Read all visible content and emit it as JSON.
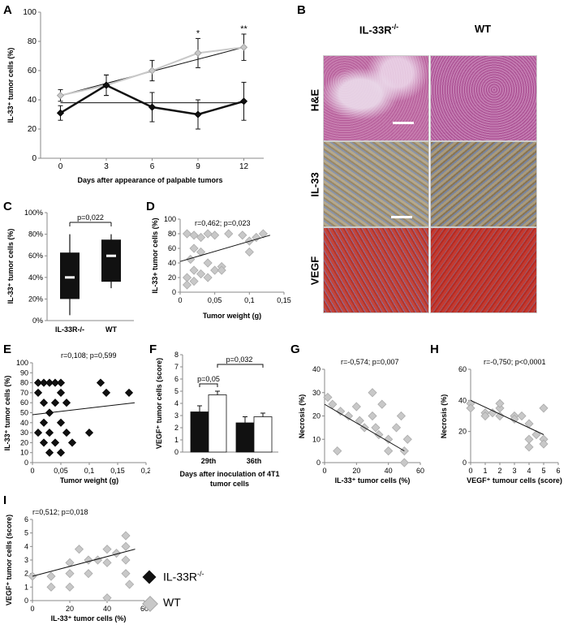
{
  "panel_labels": {
    "A": "A",
    "B": "B",
    "C": "C",
    "D": "D",
    "E": "E",
    "F": "F",
    "G": "G",
    "H": "H",
    "I": "I"
  },
  "legend": {
    "ko": "IL-33R",
    "ko_sup": "-/-",
    "wt": "WT"
  },
  "colors": {
    "ko": "#111111",
    "wt": "#c8c8c8",
    "bar_ko": "#111111",
    "bar_wt": "#ffffff",
    "fit": "#111111",
    "he": "#b04a8a",
    "ihc_il33": "#8a7a5a",
    "vegf": "#b8302a"
  },
  "histology": {
    "col_ko": "IL-33R",
    "col_ko_sup": "-/-",
    "col_wt": "WT",
    "rows": [
      "H&E",
      "IL-33",
      "VEGF"
    ]
  },
  "chart_data": [
    {
      "id": "A",
      "type": "line",
      "ylabel": "IL-33⁺ tumor cells (%)",
      "xlabel": "Days after appearance of palpable tumors",
      "x": [
        0,
        3,
        6,
        9,
        12
      ],
      "ylim": [
        0,
        100
      ],
      "yticks": [
        0,
        20,
        40,
        60,
        80,
        100
      ],
      "series": [
        {
          "name": "WT",
          "values": [
            43,
            50,
            60,
            72,
            76
          ],
          "err": [
            4,
            7,
            7,
            10,
            9
          ],
          "fit": [
            43,
            76
          ]
        },
        {
          "name": "IL-33R-/-",
          "values": [
            31,
            50,
            35,
            30,
            39
          ],
          "err": [
            5,
            7,
            10,
            10,
            13
          ],
          "fit": [
            38,
            38
          ]
        }
      ],
      "annotations": [
        {
          "x": 9,
          "text": "*"
        },
        {
          "x": 12,
          "text": "**"
        }
      ]
    },
    {
      "id": "C",
      "type": "box",
      "ylabel": "IL-33⁺ tumor cells (%)",
      "categories": [
        "IL-33R-/-",
        "WT"
      ],
      "ytick_labels": [
        "0%",
        "20%",
        "40%",
        "60%",
        "80%",
        "100%"
      ],
      "ylim": [
        0,
        100
      ],
      "boxes": [
        {
          "min": 5,
          "q1": 20,
          "median": 40,
          "q3": 63,
          "max": 80
        },
        {
          "min": 30,
          "q1": 36,
          "median": 60,
          "q3": 75,
          "max": 80
        }
      ],
      "pvalue": "p=0,022"
    },
    {
      "id": "D",
      "type": "scatter",
      "ylabel": "IL-33+ tumor cells (%)",
      "xlabel": "Tumor weight (g)",
      "stat": "r=0,462; p=0,023",
      "ylim": [
        0,
        100
      ],
      "yticks": [
        0,
        20,
        40,
        60,
        80,
        100
      ],
      "xlim": [
        0,
        0.15
      ],
      "xtick_labels": [
        "0",
        "0,05",
        "0,1",
        "0,15"
      ],
      "series": "WT",
      "points": [
        [
          0.01,
          80
        ],
        [
          0.02,
          78
        ],
        [
          0.03,
          75
        ],
        [
          0.04,
          80
        ],
        [
          0.05,
          78
        ],
        [
          0.07,
          80
        ],
        [
          0.09,
          78
        ],
        [
          0.1,
          70
        ],
        [
          0.11,
          75
        ],
        [
          0.12,
          80
        ],
        [
          0.02,
          60
        ],
        [
          0.03,
          55
        ],
        [
          0.015,
          45
        ],
        [
          0.02,
          30
        ],
        [
          0.03,
          25
        ],
        [
          0.04,
          40
        ],
        [
          0.05,
          30
        ],
        [
          0.06,
          35
        ],
        [
          0.01,
          20
        ],
        [
          0.01,
          10
        ],
        [
          0.02,
          15
        ],
        [
          0.04,
          20
        ],
        [
          0.06,
          30
        ],
        [
          0.1,
          55
        ]
      ],
      "fit": [
        [
          0,
          42
        ],
        [
          0.13,
          78
        ]
      ]
    },
    {
      "id": "E",
      "type": "scatter",
      "ylabel": "IL-33⁺ tumor cells (%)",
      "xlabel": "Tumor weight (g)",
      "stat": "r=0,108; p=0,599",
      "ylim": [
        0,
        100
      ],
      "yticks": [
        0,
        10,
        20,
        30,
        40,
        50,
        60,
        70,
        80,
        90,
        100
      ],
      "xlim": [
        0,
        0.2
      ],
      "xtick_labels": [
        "0",
        "0,05",
        "0,1",
        "0,15",
        "0,2"
      ],
      "series": "IL-33R-/-",
      "points": [
        [
          0.01,
          80
        ],
        [
          0.02,
          80
        ],
        [
          0.03,
          80
        ],
        [
          0.04,
          80
        ],
        [
          0.05,
          80
        ],
        [
          0.01,
          70
        ],
        [
          0.02,
          60
        ],
        [
          0.03,
          50
        ],
        [
          0.04,
          60
        ],
        [
          0.05,
          70
        ],
        [
          0.06,
          60
        ],
        [
          0.02,
          40
        ],
        [
          0.03,
          30
        ],
        [
          0.04,
          20
        ],
        [
          0.05,
          40
        ],
        [
          0.06,
          30
        ],
        [
          0.01,
          30
        ],
        [
          0.02,
          20
        ],
        [
          0.03,
          10
        ],
        [
          0.05,
          10
        ],
        [
          0.07,
          20
        ],
        [
          0.1,
          30
        ],
        [
          0.12,
          80
        ],
        [
          0.13,
          70
        ],
        [
          0.17,
          70
        ]
      ],
      "fit": [
        [
          0,
          48
        ],
        [
          0.18,
          60
        ]
      ]
    },
    {
      "id": "F",
      "type": "bar",
      "ylabel": "VEGF⁺ tumor cells (score)",
      "xlabel_line1": "Days after inoculation of 4T1",
      "xlabel_line2": "tumor cells",
      "categories": [
        "29th",
        "36th"
      ],
      "ylim": [
        0,
        8
      ],
      "yticks": [
        0,
        1,
        2,
        3,
        4,
        5,
        6,
        7,
        8
      ],
      "series": [
        {
          "name": "IL-33R-/-",
          "values": [
            3.3,
            2.4
          ],
          "err": [
            0.5,
            0.5
          ]
        },
        {
          "name": "WT",
          "values": [
            4.7,
            2.9
          ],
          "err": [
            0.3,
            0.3
          ]
        }
      ],
      "brackets": [
        "p=0,05",
        "p=0,032"
      ]
    },
    {
      "id": "G",
      "type": "scatter",
      "ylabel": "Necrosis (%)",
      "xlabel": "IL-33⁺ tumor cells (%)",
      "stat": "r=-0,574; p=0,007",
      "ylim": [
        0,
        40
      ],
      "yticks": [
        0,
        10,
        20,
        30,
        40
      ],
      "xlim": [
        0,
        60
      ],
      "xticks": [
        0,
        20,
        40,
        60
      ],
      "points": [
        [
          2,
          28
        ],
        [
          5,
          25
        ],
        [
          10,
          22
        ],
        [
          15,
          20
        ],
        [
          20,
          24
        ],
        [
          22,
          18
        ],
        [
          25,
          15
        ],
        [
          30,
          30
        ],
        [
          30,
          20
        ],
        [
          32,
          15
        ],
        [
          34,
          12
        ],
        [
          36,
          25
        ],
        [
          40,
          10
        ],
        [
          40,
          5
        ],
        [
          45,
          15
        ],
        [
          48,
          20
        ],
        [
          50,
          5
        ],
        [
          50,
          0
        ],
        [
          52,
          10
        ],
        [
          8,
          5
        ]
      ],
      "fit": [
        [
          0,
          25
        ],
        [
          50,
          5
        ]
      ]
    },
    {
      "id": "H",
      "type": "scatter",
      "ylabel": "Necrosis (%)",
      "xlabel": "VEGF⁺ tumour cells (score)",
      "stat": "r=-0,750; p<0,0001",
      "ylim": [
        0,
        60
      ],
      "yticks": [
        0,
        20,
        40,
        60
      ],
      "xlim": [
        0,
        6
      ],
      "xticks": [
        0,
        1,
        2,
        3,
        4,
        5,
        6
      ],
      "points": [
        [
          0,
          38
        ],
        [
          0,
          35
        ],
        [
          1,
          32
        ],
        [
          1,
          30
        ],
        [
          1.5,
          32
        ],
        [
          2,
          35
        ],
        [
          2,
          30
        ],
        [
          2,
          38
        ],
        [
          3,
          30
        ],
        [
          3,
          28
        ],
        [
          4,
          25
        ],
        [
          4,
          15
        ],
        [
          4,
          10
        ],
        [
          4.5,
          18
        ],
        [
          5,
          15
        ],
        [
          5,
          12
        ],
        [
          5,
          35
        ],
        [
          3.5,
          30
        ]
      ],
      "fit": [
        [
          0,
          40
        ],
        [
          5,
          18
        ]
      ]
    },
    {
      "id": "I",
      "type": "scatter",
      "ylabel": "VEGF⁺ tumor cells (score)",
      "xlabel": "IL-33⁺ tumor cells (%)",
      "stat": "r=0,512; p=0,018",
      "ylim": [
        0,
        6
      ],
      "yticks": [
        0,
        1,
        2,
        3,
        4,
        5,
        6
      ],
      "xlim": [
        0,
        60
      ],
      "xticks": [
        0,
        20,
        40,
        60
      ],
      "points": [
        [
          0,
          1.8
        ],
        [
          10,
          1.8
        ],
        [
          10,
          1
        ],
        [
          20,
          1
        ],
        [
          20,
          2
        ],
        [
          20,
          2.8
        ],
        [
          30,
          2
        ],
        [
          30,
          3
        ],
        [
          35,
          3
        ],
        [
          40,
          2.8
        ],
        [
          40,
          3.8
        ],
        [
          40,
          0.2
        ],
        [
          45,
          3.5
        ],
        [
          50,
          4.8
        ],
        [
          50,
          4
        ],
        [
          50,
          3
        ],
        [
          50,
          2
        ],
        [
          52,
          1.2
        ],
        [
          25,
          3.8
        ]
      ],
      "fit": [
        [
          0,
          1.8
        ],
        [
          55,
          3.8
        ]
      ]
    }
  ]
}
